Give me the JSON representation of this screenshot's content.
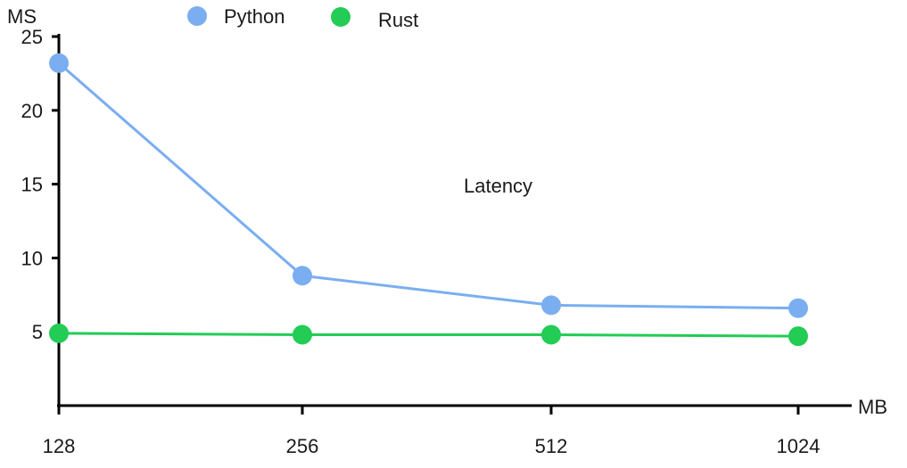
{
  "chart_data": {
    "type": "line",
    "title": "",
    "annotation": "Latency",
    "xlabel": "MB",
    "ylabel": "MS",
    "categories": [
      "128",
      "256",
      "512",
      "1024"
    ],
    "yticks": [
      5,
      10,
      15,
      20,
      25
    ],
    "ylim": [
      0,
      25
    ],
    "grid": false,
    "legend_position": "top-left",
    "series": [
      {
        "name": "Python",
        "color": "#7aaef0",
        "values": [
          23.2,
          8.8,
          6.8,
          6.6
        ]
      },
      {
        "name": "Rust",
        "color": "#22cc55",
        "values": [
          4.9,
          4.8,
          4.8,
          4.7
        ]
      }
    ]
  }
}
